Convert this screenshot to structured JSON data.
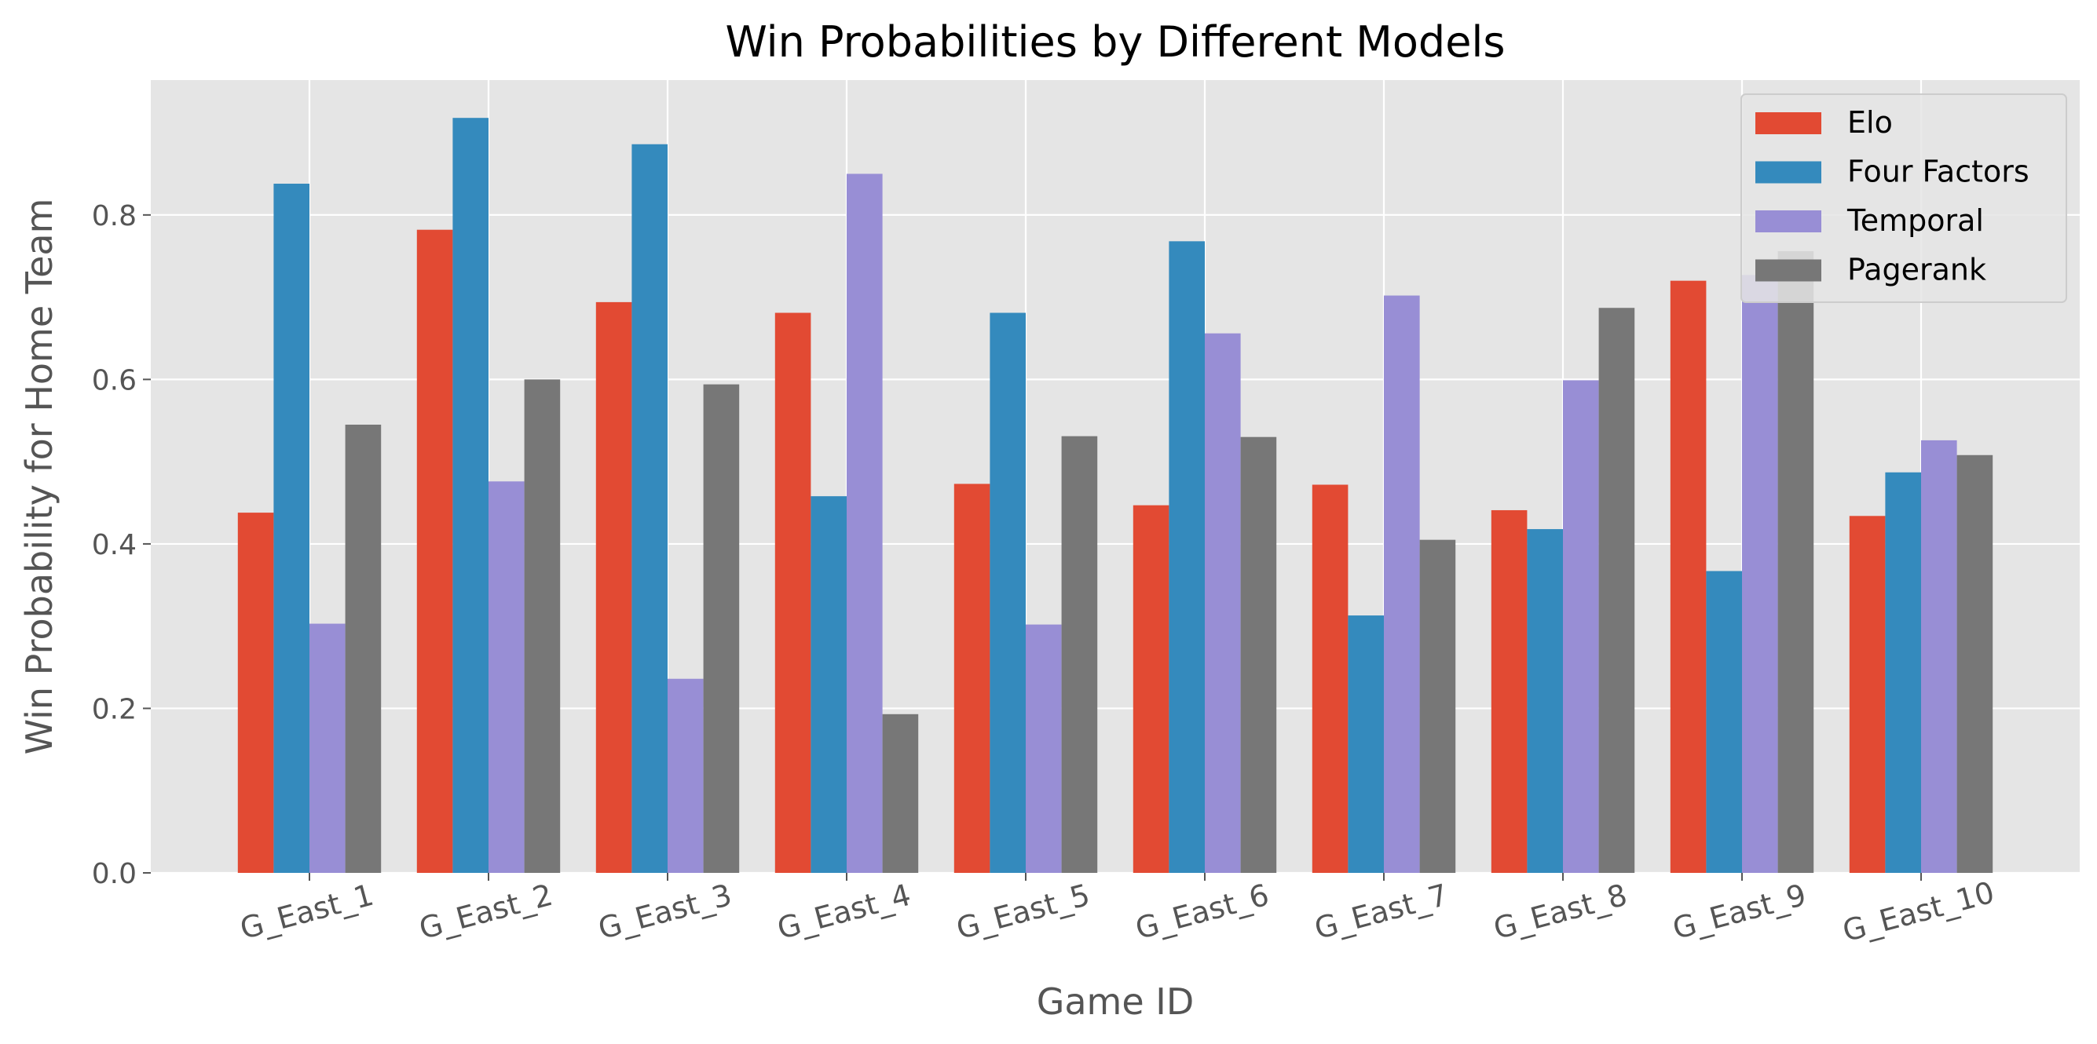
{
  "chart_data": {
    "type": "bar",
    "title": "Win Probabilities by Different Models",
    "xlabel": "Game ID",
    "ylabel": "Win Probability for Home Team",
    "categories": [
      "G_East_1",
      "G_East_2",
      "G_East_3",
      "G_East_4",
      "G_East_5",
      "G_East_6",
      "G_East_7",
      "G_East_8",
      "G_East_9",
      "G_East_10"
    ],
    "series": [
      {
        "name": "Elo",
        "color": "#E24A33",
        "values": [
          0.438,
          0.782,
          0.694,
          0.681,
          0.473,
          0.447,
          0.472,
          0.441,
          0.72,
          0.434
        ]
      },
      {
        "name": "Four Factors",
        "color": "#348ABD",
        "values": [
          0.838,
          0.918,
          0.886,
          0.458,
          0.681,
          0.768,
          0.313,
          0.418,
          0.367,
          0.487
        ]
      },
      {
        "name": "Temporal",
        "color": "#988ED5",
        "values": [
          0.303,
          0.476,
          0.236,
          0.85,
          0.302,
          0.656,
          0.702,
          0.599,
          0.727,
          0.526
        ]
      },
      {
        "name": "Pagerank",
        "color": "#777777",
        "values": [
          0.545,
          0.6,
          0.594,
          0.193,
          0.531,
          0.53,
          0.405,
          0.687,
          0.756,
          0.508
        ]
      }
    ],
    "yticks": [
      "0.0",
      "0.2",
      "0.4",
      "0.6",
      "0.8"
    ],
    "ytick_values": [
      0.0,
      0.2,
      0.4,
      0.6,
      0.8
    ],
    "ylim": [
      0,
      0.964
    ],
    "grid": true,
    "legend_position": "top-right",
    "background_color": "#E5E5E5",
    "grid_color": "#FFFFFF"
  }
}
